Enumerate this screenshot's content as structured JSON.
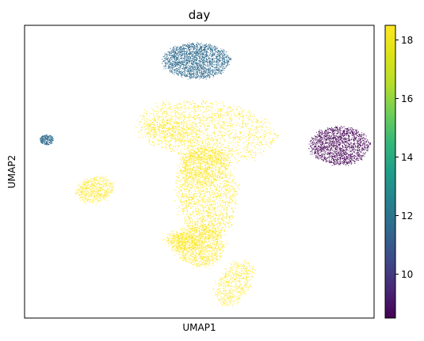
{
  "chart_data": {
    "type": "scatter",
    "title": "day",
    "xlabel": "UMAP1",
    "ylabel": "UMAP2",
    "x_ticks_shown": false,
    "y_ticks_shown": false,
    "grid": false,
    "colorbar": {
      "colormap": "viridis",
      "range": [
        8.5,
        18.5
      ],
      "ticks": [
        "10",
        "12",
        "14",
        "16",
        "18"
      ],
      "tick_values": [
        10,
        12,
        14,
        16,
        18
      ],
      "placement": "right"
    },
    "clusters": [
      {
        "id": "top-cluster",
        "day": 12,
        "color": "#2f6b8e",
        "center": [
          0.49,
          0.88
        ],
        "spread": [
          0.095,
          0.06
        ],
        "shape": "ellipse",
        "density": 2600
      },
      {
        "id": "right-cluster",
        "day": 8.5,
        "color": "#440154",
        "center": [
          0.9,
          0.59
        ],
        "spread": [
          0.085,
          0.065
        ],
        "shape": "ellipse",
        "density": 2000
      },
      {
        "id": "left-small-cluster",
        "day": 12,
        "color": "#2f6b8e",
        "center": [
          0.063,
          0.61
        ],
        "spread": [
          0.02,
          0.017
        ],
        "shape": "ellipse",
        "density": 260
      },
      {
        "id": "left-mid-cluster",
        "day": 18.5,
        "color": "#fde725",
        "center": [
          0.2,
          0.44
        ],
        "spread": [
          0.055,
          0.04
        ],
        "shape": "blob",
        "density": 600
      },
      {
        "id": "main-cluster",
        "day": 18.5,
        "color": "#fde725",
        "center": [
          0.5,
          0.45
        ],
        "spread": [
          0.2,
          0.5
        ],
        "shape": "complex",
        "density": 9000
      }
    ]
  }
}
